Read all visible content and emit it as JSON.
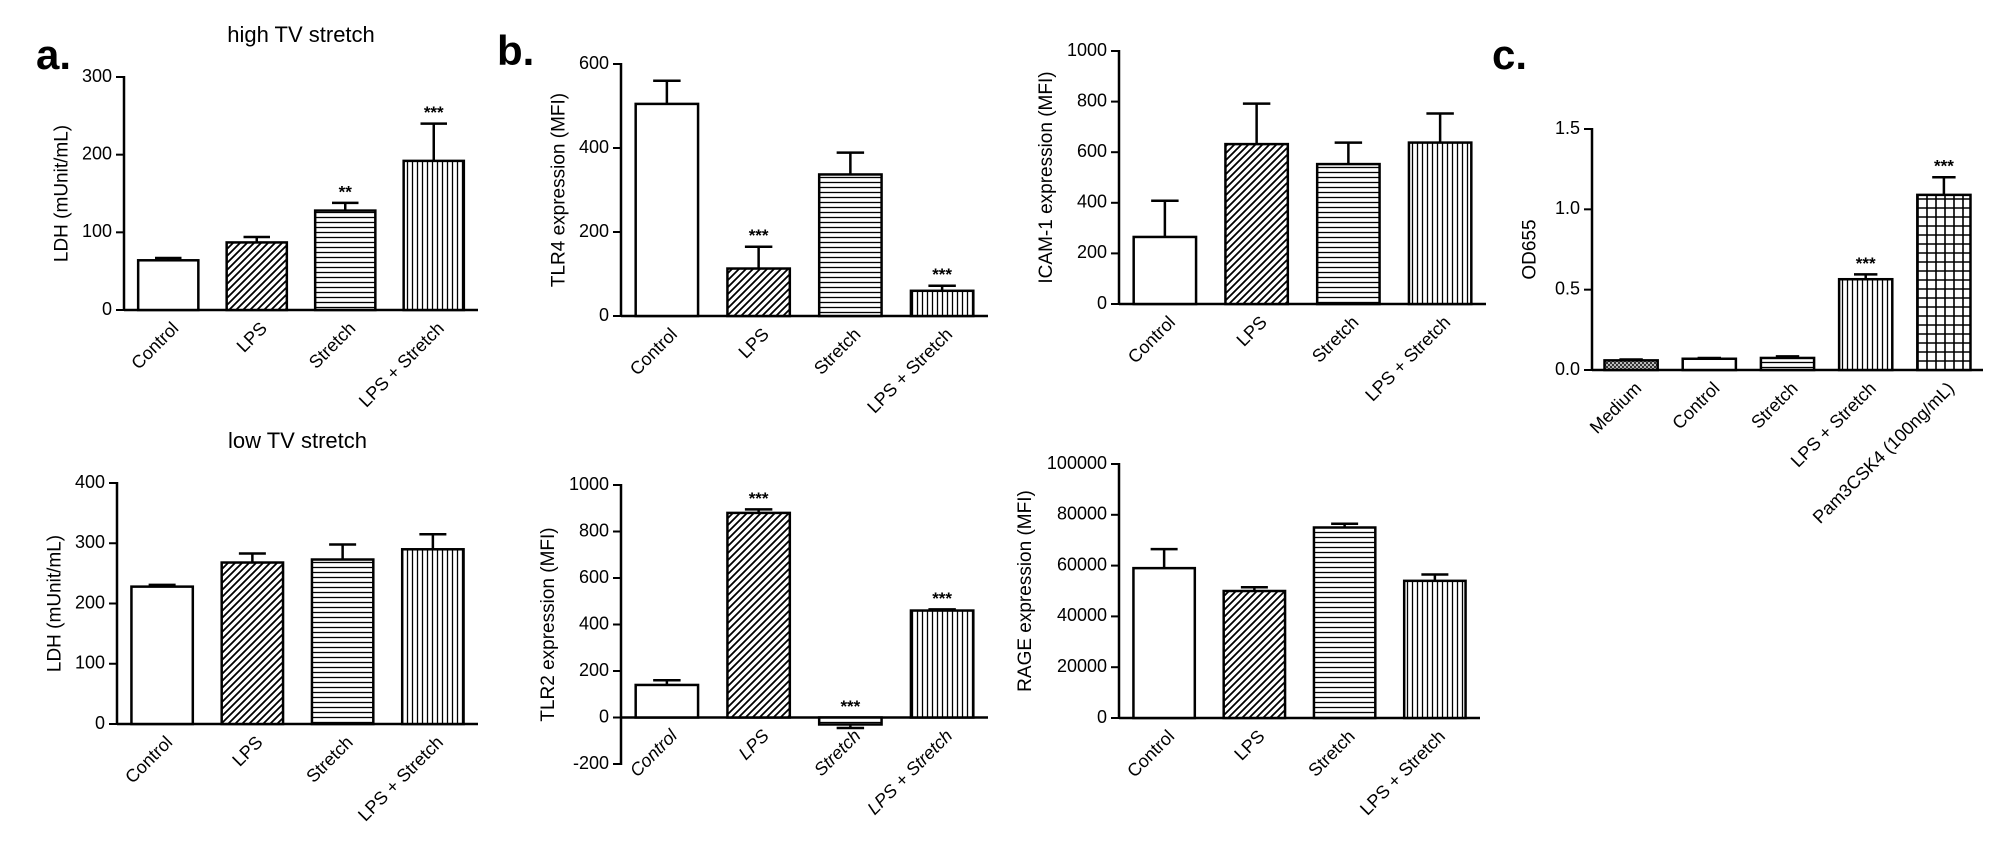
{
  "chart_data": [
    {
      "type": "bar",
      "panel_label": "a.",
      "title": "high TV stretch",
      "ylabel": "LDH (mUnit/mL)",
      "categories": [
        "Control",
        "LPS",
        "Stretch",
        "LPS + Stretch"
      ],
      "values": [
        64,
        87,
        128,
        192
      ],
      "errors": [
        3,
        7,
        10,
        48
      ],
      "annotations": [
        null,
        null,
        "**",
        "***"
      ],
      "patterns": [
        "open",
        "diagonal",
        "horizontal",
        "vertical"
      ],
      "ylim": [
        0,
        300
      ],
      "yticks": [
        0,
        100,
        200,
        300
      ]
    },
    {
      "type": "bar",
      "title": "low TV stretch",
      "ylabel": "LDH (mUnit/mL)",
      "categories": [
        "Control",
        "LPS",
        "Stretch",
        "LPS + Stretch"
      ],
      "values": [
        228,
        268,
        273,
        290
      ],
      "errors": [
        3,
        15,
        25,
        25
      ],
      "patterns": [
        "open",
        "diagonal",
        "horizontal",
        "vertical"
      ],
      "ylim": [
        0,
        400
      ],
      "yticks": [
        0,
        100,
        200,
        300,
        400
      ]
    },
    {
      "type": "bar",
      "panel_label": "b.",
      "ylabel": "TLR4 expression (MFI)",
      "categories": [
        "Control",
        "LPS",
        "Stretch",
        "LPS + Stretch"
      ],
      "values": [
        505,
        113,
        337,
        60
      ],
      "errors": [
        55,
        52,
        52,
        12
      ],
      "annotations": [
        null,
        "***",
        null,
        "***"
      ],
      "patterns": [
        "open",
        "diagonal",
        "horizontal",
        "vertical"
      ],
      "ylim": [
        0,
        600
      ],
      "yticks": [
        0,
        200,
        400,
        600
      ]
    },
    {
      "type": "bar",
      "ylabel": "ICAM-1 expression (MFI)",
      "categories": [
        "Control",
        "LPS",
        "Stretch",
        "LPS + Stretch"
      ],
      "values": [
        265,
        632,
        553,
        638
      ],
      "errors": [
        143,
        160,
        85,
        115
      ],
      "patterns": [
        "open",
        "diagonal",
        "horizontal",
        "vertical"
      ],
      "ylim": [
        0,
        1000
      ],
      "yticks": [
        0,
        200,
        400,
        600,
        800,
        1000
      ]
    },
    {
      "type": "bar",
      "ylabel": "TLR2 expression (MFI)",
      "italic_categories": true,
      "categories": [
        "Control",
        "LPS",
        "Stretch",
        "LPS + Stretch"
      ],
      "values": [
        140,
        880,
        -30,
        460
      ],
      "errors": [
        20,
        15,
        15,
        5
      ],
      "annotations": [
        null,
        "***",
        "***",
        "***"
      ],
      "patterns": [
        "open",
        "diagonal",
        "horizontal",
        "vertical"
      ],
      "ylim": [
        -200,
        1000
      ],
      "yticks": [
        -200,
        0,
        200,
        400,
        600,
        800,
        1000
      ]
    },
    {
      "type": "bar",
      "ylabel": "RAGE expression (MFI)",
      "categories": [
        "Control",
        "LPS",
        "Stretch",
        "LPS + Stretch"
      ],
      "values": [
        59000,
        50000,
        75000,
        54000
      ],
      "errors": [
        7500,
        1500,
        1500,
        2500
      ],
      "patterns": [
        "open",
        "diagonal",
        "horizontal",
        "vertical"
      ],
      "ylim": [
        0,
        100000
      ],
      "yticks": [
        0,
        20000,
        40000,
        60000,
        80000,
        100000
      ]
    },
    {
      "type": "bar",
      "panel_label": "c.",
      "ylabel": "OD655",
      "categories": [
        "Medium",
        "Control",
        "Stretch",
        "LPS + Stretch",
        "Pam3CSK4 (100ng/mL)"
      ],
      "values": [
        0.06,
        0.07,
        0.075,
        0.565,
        1.09
      ],
      "errors": [
        0.005,
        0.005,
        0.01,
        0.03,
        0.11
      ],
      "annotations": [
        null,
        null,
        null,
        "***",
        "***"
      ],
      "patterns": [
        "dots",
        "open",
        "horizontal",
        "vertical",
        "grid"
      ],
      "ylim": [
        0,
        1.5
      ],
      "yticks": [
        {
          "value": 0,
          "label": "0.0"
        },
        0.5,
        {
          "value": 1,
          "label": "1.0"
        },
        1.5
      ]
    }
  ]
}
